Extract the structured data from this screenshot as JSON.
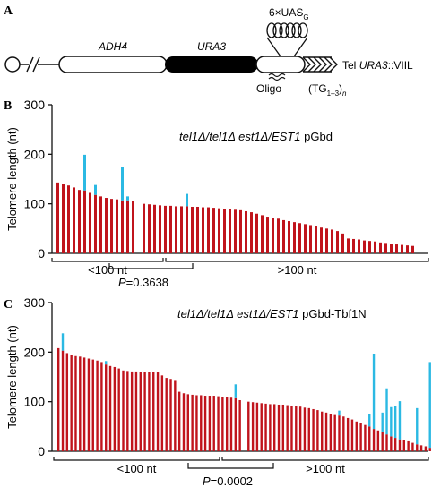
{
  "colors": {
    "elongation": "#2bb9e3",
    "base": "#c0141c",
    "ink": "#111111",
    "block": "#111111"
  },
  "panelA": {
    "letter": "A",
    "labels": {
      "adh4": "ADH4",
      "ura3": "URA3",
      "uas_prefix": "6×UAS",
      "uas_sub": "G",
      "oligo": "Oligo",
      "tg": "(TG",
      "tg_sub": "1–3",
      "tg_end": ")",
      "tg_n": "n",
      "tel_prefix": "Tel ",
      "tel_gene": "URA3",
      "tel_suffix": "::VIIL"
    }
  },
  "chart_data": [
    {
      "type": "bar",
      "panel": "B",
      "title_parts": [
        "tel1Δ/tel1Δ est1Δ/EST1",
        " pGbd"
      ],
      "ylabel": "Telomere length (nt)",
      "ylim": [
        0,
        300
      ],
      "yticks": [
        0,
        100,
        200,
        300
      ],
      "stacked": true,
      "series": [
        {
          "name": "",
          "color": "#c0141c",
          "values": [
            143,
            140,
            137,
            133,
            128,
            127,
            122,
            118,
            115,
            112,
            110,
            109,
            107,
            107,
            105,
            0,
            100,
            99,
            98,
            97,
            96,
            96,
            95,
            95,
            95,
            94,
            94,
            93,
            93,
            92,
            91,
            90,
            89,
            88,
            87,
            85,
            83,
            80,
            77,
            74,
            72,
            70,
            67,
            65,
            63,
            61,
            59,
            57,
            55,
            52,
            50,
            48,
            45,
            40,
            30,
            29,
            28,
            26,
            25,
            24,
            22,
            21,
            19,
            18,
            17,
            16,
            15
          ]
        },
        {
          "name": "",
          "color": "#2bb9e3",
          "values": [
            0,
            0,
            0,
            0,
            0,
            72,
            0,
            20,
            0,
            0,
            0,
            0,
            68,
            8,
            0,
            0,
            0,
            0,
            0,
            0,
            0,
            0,
            0,
            0,
            25,
            0,
            0,
            0,
            0,
            0,
            0,
            0,
            0,
            0,
            0,
            0,
            0,
            0,
            0,
            0,
            0,
            0,
            0,
            0,
            0,
            0,
            0,
            0,
            0,
            0,
            0,
            0,
            0,
            0,
            0,
            0,
            0,
            0,
            0,
            0,
            0,
            0,
            0,
            0,
            0,
            0,
            0
          ]
        }
      ],
      "groups": [
        {
          "label": "<100 nt"
        },
        {
          "label": ">100 nt"
        }
      ],
      "pvalue": {
        "prefix": "P",
        "text": "=0.3638"
      }
    },
    {
      "type": "bar",
      "panel": "C",
      "title_parts": [
        "tel1Δ/tel1Δ est1Δ/EST1",
        " pGbd-Tbf1N"
      ],
      "ylabel": "Telomere length (nt)",
      "ylim": [
        0,
        300
      ],
      "yticks": [
        0,
        100,
        200,
        300
      ],
      "stacked": true,
      "series": [
        {
          "name": "",
          "color": "#c0141c",
          "values": [
            208,
            203,
            198,
            195,
            192,
            191,
            189,
            187,
            185,
            183,
            180,
            175,
            172,
            170,
            167,
            163,
            162,
            161,
            161,
            160,
            160,
            160,
            160,
            159,
            153,
            148,
            146,
            142,
            120,
            117,
            115,
            114,
            113,
            113,
            112,
            112,
            112,
            111,
            110,
            110,
            108,
            107,
            103,
            0,
            100,
            99,
            98,
            97,
            96,
            95,
            95,
            94,
            94,
            93,
            92,
            91,
            90,
            88,
            87,
            85,
            83,
            80,
            78,
            75,
            73,
            72,
            70,
            67,
            64,
            60,
            57,
            53,
            50,
            45,
            42,
            38,
            34,
            30,
            27,
            24,
            22,
            20,
            17,
            14,
            12,
            10,
            7,
            5
          ]
        },
        {
          "name": "",
          "color": "#2bb9e3",
          "values": [
            0,
            35,
            0,
            0,
            0,
            0,
            0,
            0,
            0,
            0,
            0,
            7,
            0,
            0,
            0,
            0,
            0,
            0,
            0,
            0,
            0,
            0,
            0,
            0,
            0,
            0,
            0,
            0,
            0,
            0,
            0,
            0,
            0,
            0,
            0,
            0,
            0,
            0,
            0,
            0,
            0,
            28,
            0,
            0,
            0,
            0,
            0,
            0,
            0,
            0,
            0,
            0,
            0,
            0,
            0,
            0,
            0,
            0,
            0,
            0,
            0,
            0,
            0,
            0,
            0,
            10,
            0,
            0,
            0,
            0,
            0,
            0,
            25,
            152,
            0,
            40,
            93,
            59,
            64,
            77,
            0,
            0,
            0,
            73,
            0,
            0,
            173,
            90
          ]
        }
      ],
      "groups": [
        {
          "label": "<100 nt"
        },
        {
          "label": ">100 nt"
        }
      ],
      "pvalue": {
        "prefix": "P",
        "text": "=0.0002"
      }
    }
  ]
}
